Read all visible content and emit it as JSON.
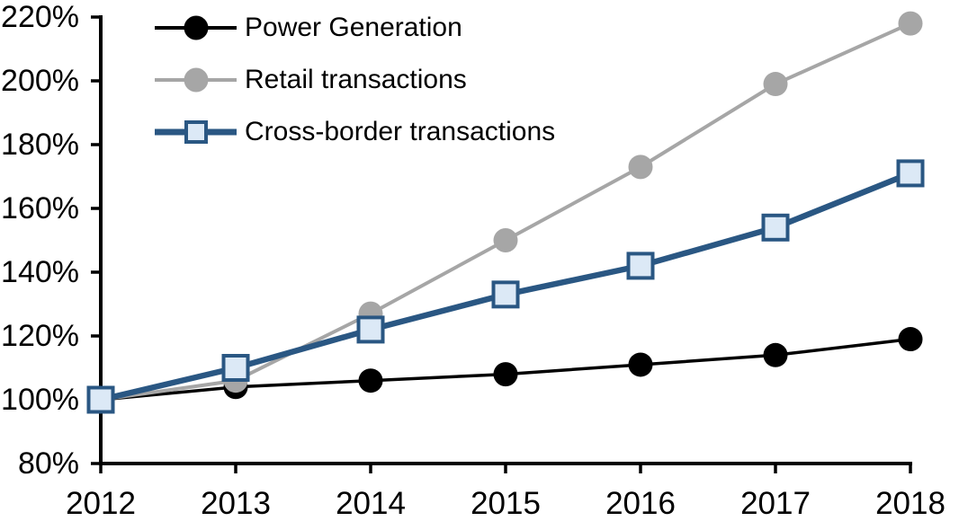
{
  "chart_data": {
    "type": "line",
    "title": "",
    "xlabel": "",
    "ylabel": "",
    "x_labels": [
      "2012",
      "2013",
      "2014",
      "2015",
      "2016",
      "2017",
      "2018"
    ],
    "y_tick_labels": [
      "80%",
      "100%",
      "120%",
      "140%",
      "160%",
      "180%",
      "200%",
      "220%"
    ],
    "ylim": [
      80,
      220
    ],
    "y_tick_step": 20,
    "grid": false,
    "legend_position": "top-left",
    "axis_color": "#000000",
    "series": [
      {
        "name": "Power Generation",
        "values": [
          100,
          104,
          106,
          108,
          111,
          114,
          119
        ],
        "color": "#000000",
        "marker": "circle",
        "marker_fill": "#000000"
      },
      {
        "name": "Retail transactions",
        "values": [
          100,
          106,
          127,
          150,
          173,
          199,
          218
        ],
        "color": "#A6A6A6",
        "marker": "circle",
        "marker_fill": "#A6A6A6"
      },
      {
        "name": "Cross-border transactions",
        "values": [
          100,
          110,
          122,
          133,
          142,
          154,
          171
        ],
        "color": "#2A5783",
        "marker": "square",
        "marker_fill": "#DCE9F6"
      }
    ]
  }
}
